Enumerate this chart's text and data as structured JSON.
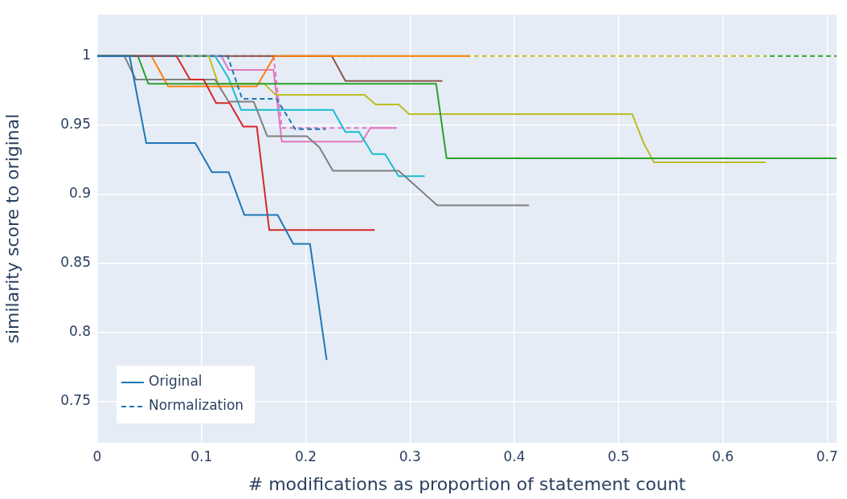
{
  "chart_data": {
    "type": "line",
    "xlabel": "# modifications as proportion of statement count",
    "ylabel": "similarity score to original",
    "xlim": [
      0,
      0.709
    ],
    "xticks": [
      0,
      0.1,
      0.2,
      0.3,
      0.4,
      0.5,
      0.6,
      0.7
    ],
    "ylim": [
      0.72,
      1.03
    ],
    "yticks": [
      0.75,
      0.8,
      0.85,
      0.9,
      0.95,
      1
    ],
    "grid": true,
    "legend": "bottom left",
    "series": [
      {
        "name": "Original",
        "color": "#1f77b4",
        "line_style": "solid",
        "x": [
          0,
          0.031,
          0.047,
          0.094,
          0.11,
          0.126,
          0.141,
          0.173,
          0.188,
          0.204,
          0.22
        ],
        "values": [
          1,
          1,
          0.937,
          0.937,
          0.916,
          0.916,
          0.885,
          0.885,
          0.864,
          0.864,
          0.78
        ]
      },
      {
        "name": "Normalization",
        "color": "#1f77b4",
        "line_style": "dashed",
        "x": [
          0,
          0.125,
          0.139,
          0.172,
          0.19,
          0.219
        ],
        "values": [
          1,
          1,
          0.969,
          0.969,
          0.947,
          0.947
        ]
      },
      {
        "color": "#d62728",
        "line_style": "solid",
        "x": [
          0,
          0.076,
          0.089,
          0.102,
          0.114,
          0.127,
          0.14,
          0.153,
          0.165,
          0.266
        ],
        "values": [
          1,
          1,
          0.983,
          0.983,
          0.966,
          0.966,
          0.949,
          0.949,
          0.874,
          0.874
        ]
      },
      {
        "color": "#2ca02c",
        "line_style": "solid",
        "x": [
          0,
          0.039,
          0.049,
          0.325,
          0.335,
          0.709
        ],
        "values": [
          1,
          1,
          0.98,
          0.98,
          0.926,
          0.926
        ]
      },
      {
        "color": "#ff7f0e",
        "line_style": "solid",
        "x": [
          0,
          0.052,
          0.068,
          0.153,
          0.17,
          0.357
        ],
        "values": [
          1,
          1,
          0.978,
          0.978,
          1,
          1
        ]
      },
      {
        "color": "#7f7f7f",
        "line_style": "solid",
        "x": [
          0,
          0.026,
          0.037,
          0.113,
          0.126,
          0.15,
          0.163,
          0.201,
          0.213,
          0.226,
          0.289,
          0.326,
          0.414
        ],
        "values": [
          1,
          1,
          0.983,
          0.983,
          0.967,
          0.967,
          0.942,
          0.942,
          0.934,
          0.917,
          0.917,
          0.892,
          0.892
        ]
      },
      {
        "color": "#bcbd22",
        "line_style": "solid",
        "x": [
          0,
          0.107,
          0.116,
          0.16,
          0.171,
          0.256,
          0.267,
          0.289,
          0.299,
          0.513,
          0.524,
          0.534,
          0.641
        ],
        "values": [
          1,
          1,
          0.98,
          0.98,
          0.972,
          0.972,
          0.965,
          0.965,
          0.958,
          0.958,
          0.937,
          0.923,
          0.923
        ]
      },
      {
        "color": "#17becf",
        "line_style": "solid",
        "x": [
          0,
          0.113,
          0.126,
          0.138,
          0.226,
          0.238,
          0.251,
          0.264,
          0.276,
          0.289,
          0.314
        ],
        "values": [
          1,
          1,
          0.984,
          0.961,
          0.961,
          0.945,
          0.945,
          0.929,
          0.929,
          0.913,
          0.913
        ]
      },
      {
        "color": "#e377c2",
        "line_style": "solid",
        "x": [
          0,
          0.119,
          0.126,
          0.169,
          0.177,
          0.254,
          0.262,
          0.287
        ],
        "values": [
          1,
          1,
          0.99,
          0.99,
          0.938,
          0.938,
          0.948,
          0.948
        ]
      },
      {
        "color": "#8c564b",
        "line_style": "solid",
        "x": [
          0,
          0.225,
          0.238,
          0.331
        ],
        "values": [
          1,
          1,
          0.982,
          0.982
        ]
      },
      {
        "color": "#e377c2",
        "line_style": "dashed",
        "x": [
          0,
          0.169,
          0.177,
          0.287
        ],
        "values": [
          1,
          1,
          0.948,
          0.948
        ]
      },
      {
        "color": "#2ca02c",
        "line_style": "dashed",
        "x": [
          0.641,
          0.709
        ],
        "values": [
          1,
          1
        ]
      },
      {
        "color": "#bcbd22",
        "line_style": "dashed",
        "x": [
          0,
          0.641
        ],
        "values": [
          1,
          1
        ]
      }
    ]
  }
}
